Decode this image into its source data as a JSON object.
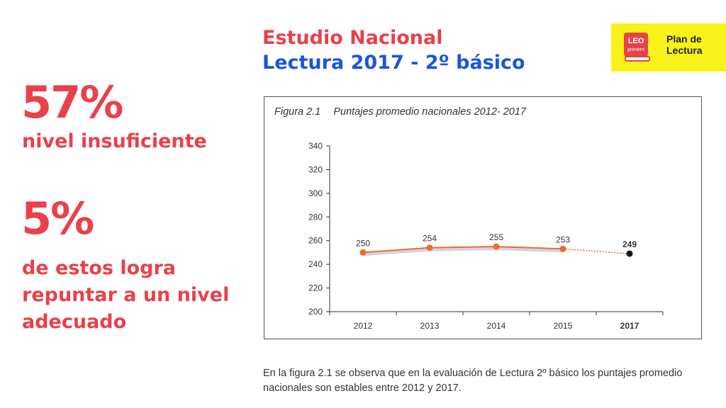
{
  "stats": {
    "insuficiente_pct": "57%",
    "insuficiente_label": "nivel insuficiente",
    "repuntar_pct": "5%",
    "repuntar_line1": "de estos logra",
    "repuntar_line2": "repuntar a un nivel",
    "repuntar_line3": "adecuado"
  },
  "header": {
    "title_line1": "Estudio Nacional",
    "title_line2": "Lectura 2017 - 2º básico"
  },
  "logo": {
    "badge_line1": "LEO",
    "badge_line2": "primero",
    "text_line1": "Plan de",
    "text_line2": "Lectura",
    "colors": {
      "background": "#f7f21a",
      "badge": "#e8414b"
    }
  },
  "figure": {
    "number": "Figura 2.1",
    "caption": "Puntajes promedio nacionales 2012- 2017"
  },
  "chart_data": {
    "type": "line",
    "x": [
      "2012",
      "2013",
      "2014",
      "2015",
      "2017"
    ],
    "values": [
      250,
      254,
      255,
      253,
      249
    ],
    "value_labels": [
      "250",
      "254",
      "255",
      "253",
      "249"
    ],
    "y_ticks": [
      "200",
      "220",
      "240",
      "260",
      "280",
      "300",
      "320",
      "340"
    ],
    "ylim": [
      200,
      340
    ],
    "last_point_dotted": true,
    "colors": {
      "line": "#f06a2a",
      "last_point": "#1a1a1a",
      "band": "#c9c6e4"
    }
  },
  "footnote": "En la figura 2.1 se observa que en la evaluación de Lectura 2º básico los puntajes promedio nacionales son estables entre 2012 y 2017.",
  "colors": {
    "accent_red": "#e8414b",
    "accent_blue": "#1a56db"
  }
}
